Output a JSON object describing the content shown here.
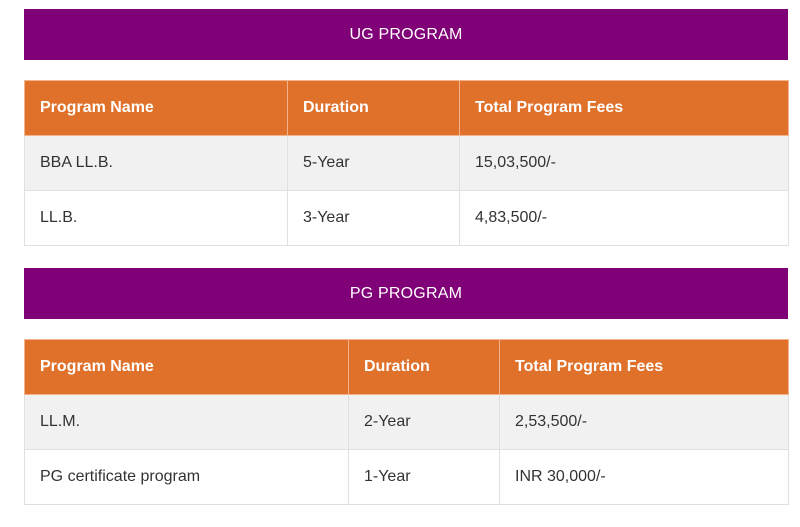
{
  "ug": {
    "title": "UG PROGRAM",
    "headers": [
      "Program Name",
      "Duration",
      "Total Program Fees"
    ],
    "rows": [
      [
        "BBA LL.B.",
        "5-Year",
        "15,03,500/-"
      ],
      [
        "LL.B.",
        "3-Year",
        "4,83,500/-"
      ]
    ]
  },
  "pg": {
    "title": "PG PROGRAM",
    "headers": [
      "Program Name",
      "Duration",
      "Total Program Fees"
    ],
    "rows": [
      [
        "LL.M.",
        "2-Year",
        "2,53,500/-"
      ],
      [
        "PG certificate program",
        "1-Year",
        "INR 30,000/-"
      ]
    ]
  },
  "colors": {
    "section_header_bg": "#800077",
    "table_header_bg": "#e0712b",
    "row_alt_bg": "#f1f1f1"
  }
}
